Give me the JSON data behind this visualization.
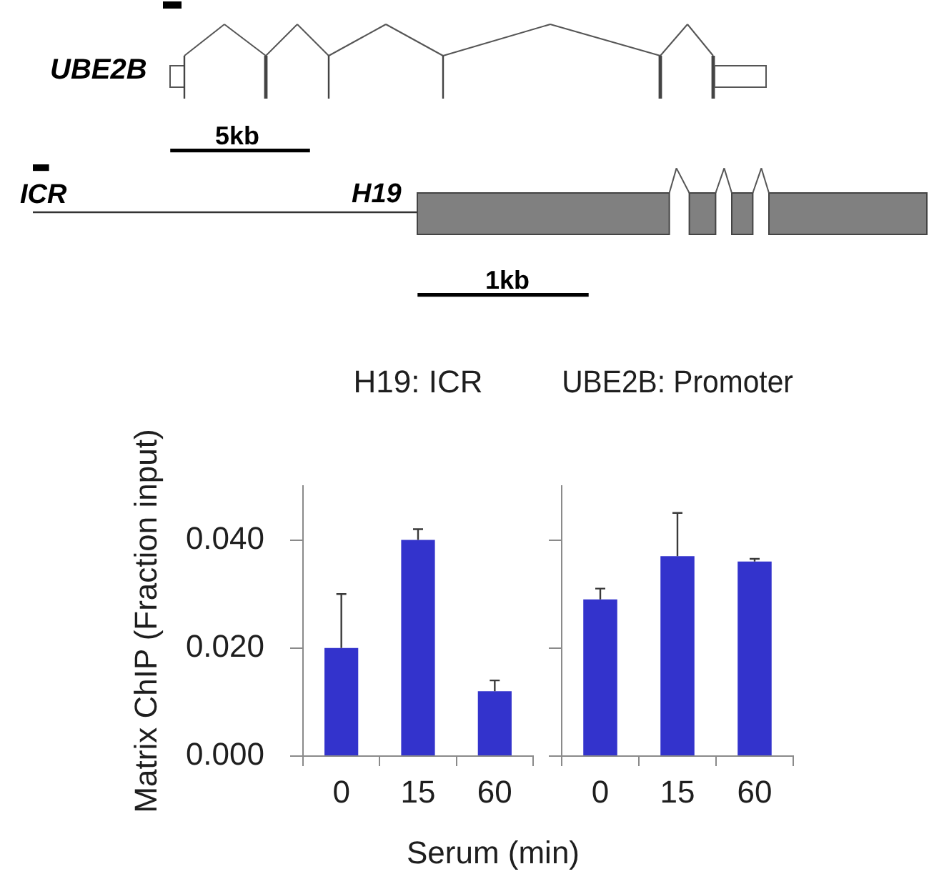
{
  "chart_data": [
    {
      "type": "other",
      "annotations": [
        "UBE2B",
        "5kb",
        "ICR",
        "H19",
        "1kb"
      ]
    },
    {
      "type": "bar",
      "title": "H19: ICR",
      "ylabel": "Matrix ChIP (Fraction input)",
      "xlabel": "Serum (min)",
      "categories": [
        "0",
        "15",
        "60"
      ],
      "values": [
        0.02,
        0.04,
        0.012
      ],
      "errors": [
        [
          0.02,
          0.03
        ],
        [
          0.04,
          0.042
        ],
        [
          0.012,
          0.014
        ]
      ],
      "color": "#3333cc",
      "ylim": [
        0,
        0.05
      ],
      "yticks": [
        {
          "value": 0,
          "label": "0.000"
        },
        {
          "value": 0.02,
          "label": "0.020"
        },
        {
          "value": 0.04,
          "label": "0.040"
        }
      ]
    },
    {
      "type": "bar",
      "title": "UBE2B: Promoter",
      "categories": [
        "0",
        "15",
        "60"
      ],
      "values": [
        0.029,
        0.037,
        0.036
      ],
      "errors": [
        [
          0.029,
          0.031
        ],
        [
          0.037,
          0.045
        ],
        [
          0.036,
          0.0365
        ]
      ],
      "color": "#3333cc",
      "ylim": [
        0,
        0.05
      ],
      "yticks": [
        0,
        0.02,
        0.04
      ],
      "tick_labels": "x"
    }
  ]
}
